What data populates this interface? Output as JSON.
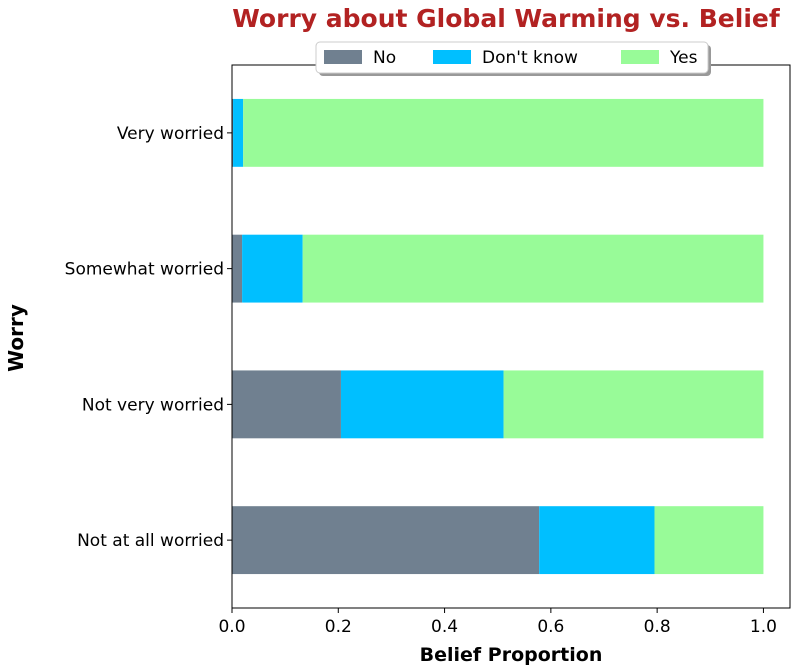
{
  "chart_data": {
    "type": "bar",
    "orientation": "horizontal",
    "stacked": true,
    "title": "Worry about Global Warming vs. Belief",
    "xlabel": "Belief Proportion",
    "ylabel": "Worry",
    "categories": [
      "Not at all worried",
      "Not very worried",
      "Somewhat worried",
      "Very worried"
    ],
    "series": [
      {
        "name": "No",
        "values": [
          0.578,
          0.205,
          0.019,
          0.002
        ],
        "color": "#708090"
      },
      {
        "name": "Don't know",
        "values": [
          0.217,
          0.306,
          0.114,
          0.019
        ],
        "color": "#00BFFF"
      },
      {
        "name": "Yes",
        "values": [
          0.205,
          0.489,
          0.867,
          0.979
        ],
        "color": "#98FB98"
      }
    ],
    "xlim": [
      0,
      1.05
    ],
    "xticks": [
      "0.0",
      "0.2",
      "0.4",
      "0.6",
      "0.8",
      "1.0"
    ],
    "xtick_values": [
      0,
      0.2,
      0.4,
      0.6,
      0.8,
      1.0
    ],
    "grid": false,
    "legend_position": "top-center",
    "title_color": "#B22222"
  }
}
